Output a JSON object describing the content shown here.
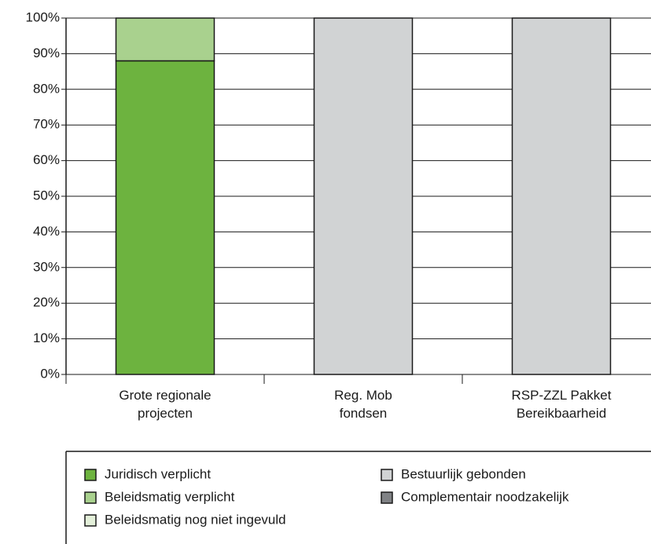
{
  "chart_data": {
    "type": "stacked_bar",
    "categories": [
      "Grote regionale\nprojecten",
      "Reg. Mob\nfondsen",
      "RSP-ZZL Pakket\nBereikbaarheid"
    ],
    "series": [
      {
        "name": "Juridisch verplicht",
        "color": "#6db33f",
        "values": [
          88,
          0,
          0
        ]
      },
      {
        "name": "Beleidsmatig verplicht",
        "color": "#a9d18e",
        "values": [
          12,
          0,
          0
        ]
      },
      {
        "name": "Beleidsmatig nog niet ingevuld",
        "color": "#e3efd9",
        "values": [
          0,
          0,
          0
        ]
      },
      {
        "name": "Bestuurlijk gebonden",
        "color": "#d1d3d4",
        "values": [
          0,
          100,
          100
        ]
      },
      {
        "name": "Complementair noodzakelijk",
        "color": "#808285",
        "values": [
          0,
          0,
          0
        ]
      }
    ],
    "ylim": [
      0,
      100
    ],
    "yticks": [
      {
        "value": 0,
        "label": "0%"
      },
      {
        "value": 10,
        "label": "10%"
      },
      {
        "value": 20,
        "label": "20%"
      },
      {
        "value": 30,
        "label": "30%"
      },
      {
        "value": 40,
        "label": "40%"
      },
      {
        "value": 50,
        "label": "50%"
      },
      {
        "value": 60,
        "label": "60%"
      },
      {
        "value": 70,
        "label": "70%"
      },
      {
        "value": 80,
        "label": "80%"
      },
      {
        "value": 90,
        "label": "90%"
      },
      {
        "value": 100,
        "label": "100%"
      }
    ],
    "grid": true
  }
}
